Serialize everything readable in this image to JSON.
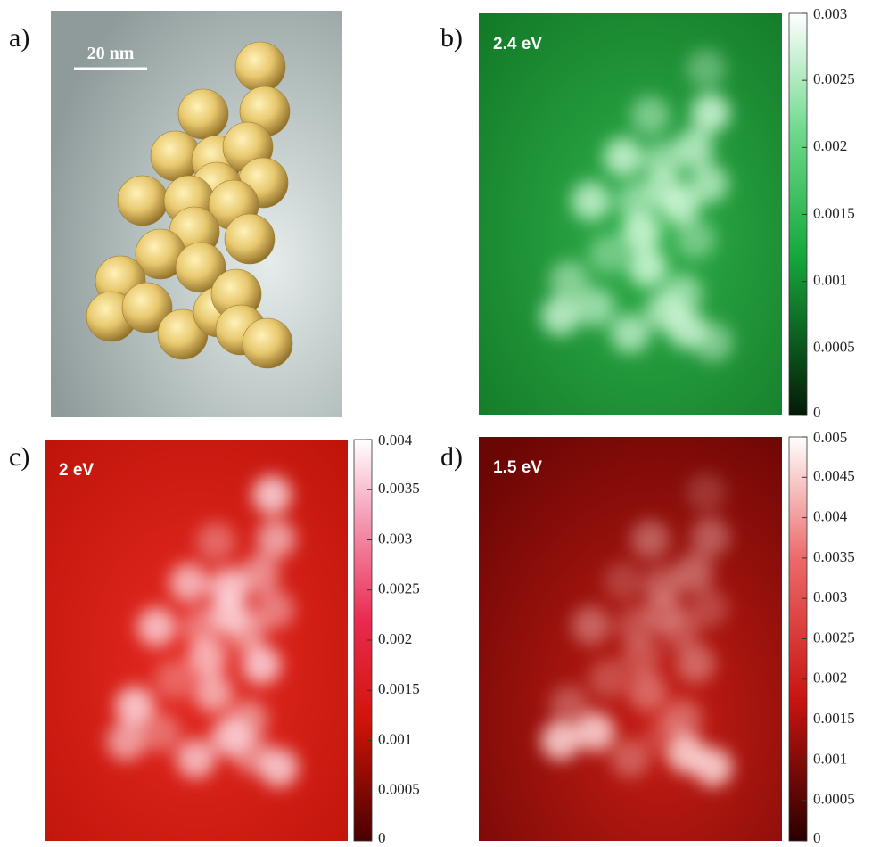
{
  "panels": [
    {
      "label": "a)",
      "scale_bar": "20 nm"
    },
    {
      "label": "b)",
      "energy": "2.4 eV",
      "colorbar": {
        "lim": [
          0,
          0.003
        ],
        "ticks": [
          0,
          0.0005,
          0.001,
          0.0015,
          0.002,
          0.0025,
          0.003
        ]
      }
    },
    {
      "label": "c)",
      "energy": "2 eV",
      "colorbar": {
        "lim": [
          0,
          0.004
        ],
        "ticks": [
          0,
          0.0005,
          0.001,
          0.0015,
          0.002,
          0.0025,
          0.003,
          0.0035,
          0.004
        ]
      }
    },
    {
      "label": "d)",
      "energy": "1.5 eV",
      "colorbar": {
        "lim": [
          0,
          0.005
        ],
        "ticks": [
          0,
          0.0005,
          0.001,
          0.0015,
          0.002,
          0.0025,
          0.003,
          0.0035,
          0.004,
          0.0045,
          0.005
        ]
      }
    }
  ]
}
